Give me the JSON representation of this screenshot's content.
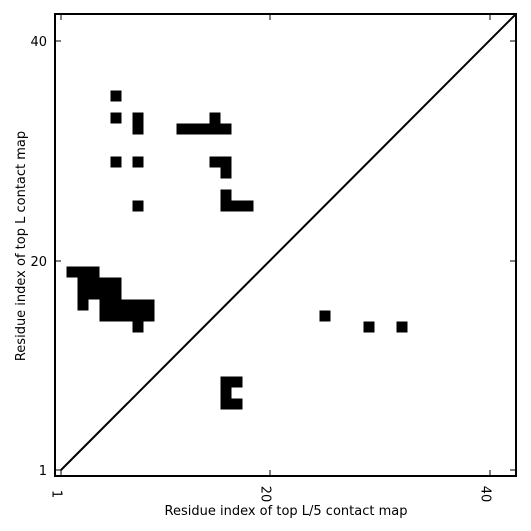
{
  "chart_data": {
    "type": "heatmap",
    "title": "",
    "xlabel": "Residue index of top L/5 contact map",
    "ylabel": "Residue index of top L contact map",
    "xlim": [
      1,
      42
    ],
    "ylim": [
      1,
      42
    ],
    "xticks": [
      1,
      20,
      40
    ],
    "yticks": [
      1,
      20,
      40
    ],
    "grid": false,
    "diagonal": true,
    "cell_color": "#000000",
    "background_color": "#ffffff",
    "series": [
      {
        "name": "",
        "cells": [
          [
            2,
            19
          ],
          [
            3,
            19
          ],
          [
            4,
            19
          ],
          [
            3,
            18
          ],
          [
            4,
            18
          ],
          [
            5,
            18
          ],
          [
            6,
            18
          ],
          [
            3,
            17
          ],
          [
            4,
            17
          ],
          [
            5,
            17
          ],
          [
            6,
            17
          ],
          [
            3,
            16
          ],
          [
            5,
            16
          ],
          [
            6,
            16
          ],
          [
            7,
            16
          ],
          [
            8,
            16
          ],
          [
            9,
            16
          ],
          [
            5,
            15
          ],
          [
            6,
            15
          ],
          [
            7,
            15
          ],
          [
            8,
            15
          ],
          [
            9,
            15
          ],
          [
            8,
            14
          ],
          [
            6,
            35
          ],
          [
            6,
            33
          ],
          [
            8,
            33
          ],
          [
            8,
            32
          ],
          [
            12,
            32
          ],
          [
            13,
            32
          ],
          [
            14,
            32
          ],
          [
            15,
            32
          ],
          [
            15,
            33
          ],
          [
            16,
            32
          ],
          [
            6,
            29
          ],
          [
            8,
            29
          ],
          [
            15,
            29
          ],
          [
            16,
            29
          ],
          [
            16,
            28
          ],
          [
            8,
            25
          ],
          [
            16,
            26
          ],
          [
            16,
            25
          ],
          [
            17,
            25
          ],
          [
            18,
            25
          ],
          [
            16,
            9
          ],
          [
            17,
            9
          ],
          [
            16,
            8
          ],
          [
            16,
            7
          ],
          [
            17,
            7
          ]
        ]
      },
      {
        "name": "",
        "cells": [
          [
            25,
            15
          ],
          [
            29,
            14
          ],
          [
            32,
            14
          ]
        ]
      }
    ]
  }
}
